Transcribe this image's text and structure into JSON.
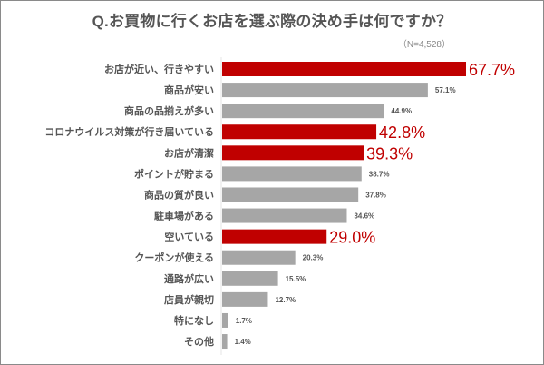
{
  "chart_data": {
    "type": "bar",
    "orientation": "horizontal",
    "title": "Q.お買物に行くお店を選ぶ際の決め手は何ですか？",
    "subtitle": "（N=4,528）",
    "categories": [
      "お店が近い、行きやすい",
      "商品が安い",
      "商品の品揃えが多い",
      "コロナウイルス対策が行き届いている",
      "お店が清潔",
      "ポイントが貯まる",
      "商品の質が良い",
      "駐車場がある",
      "空いている",
      "クーポンが使える",
      "通路が広い",
      "店員が親切",
      "特になし",
      "その他"
    ],
    "values": [
      67.7,
      57.1,
      44.9,
      42.8,
      39.3,
      38.7,
      37.8,
      34.6,
      29.0,
      20.3,
      15.5,
      12.7,
      1.7,
      1.4
    ],
    "labels": [
      "67.7%",
      "57.1%",
      "44.9%",
      "42.8%",
      "39.3%",
      "38.7%",
      "37.8%",
      "34.6%",
      "29.0%",
      "20.3%",
      "15.5%",
      "12.7%",
      "1.7%",
      "1.4%"
    ],
    "highlighted": [
      true,
      false,
      false,
      true,
      true,
      false,
      false,
      false,
      true,
      false,
      false,
      false,
      false,
      false
    ],
    "colors": {
      "highlight": "#c00000",
      "default": "#a6a6a6"
    },
    "xlim": [
      0,
      70
    ],
    "grid": false,
    "legend": "none"
  }
}
